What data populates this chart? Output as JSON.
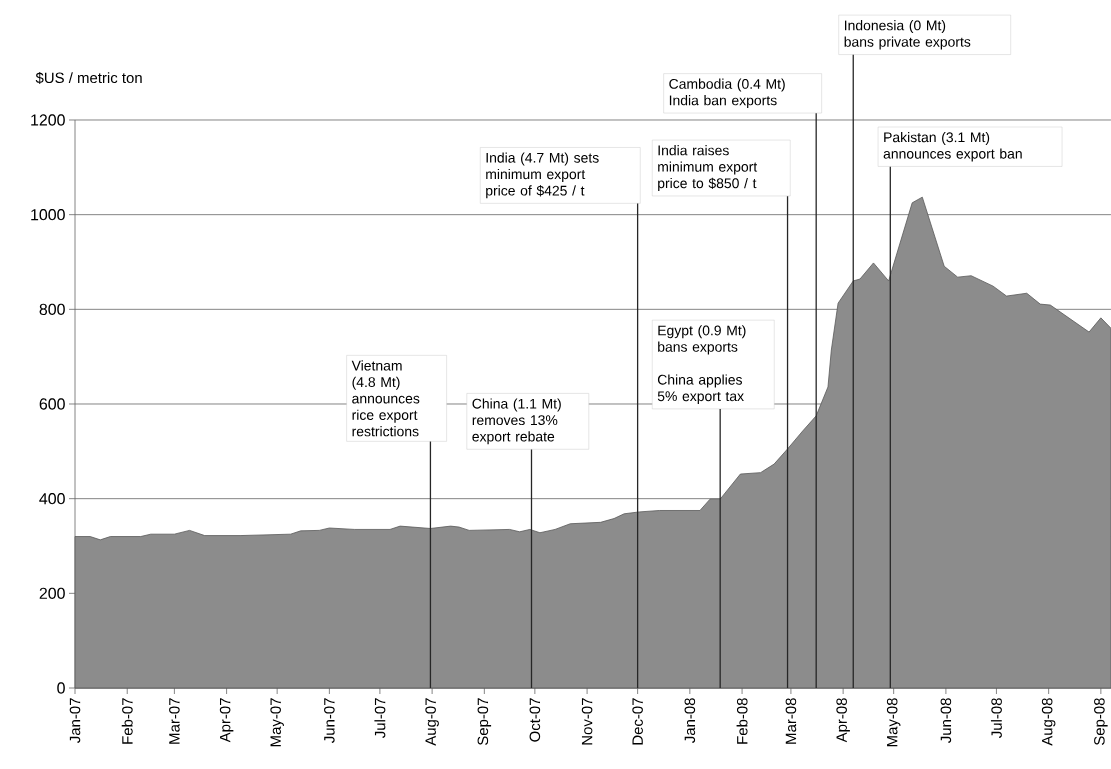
{
  "chart_data": {
    "type": "area",
    "ylabel": "$US / metric ton",
    "color": "#8c8c8c",
    "grid": "y",
    "x": [
      "2007-01-01",
      "2007-01-10",
      "2007-01-16",
      "2007-01-22",
      "2007-02-09",
      "2007-02-15",
      "2007-03-01",
      "2007-03-10",
      "2007-03-19",
      "2007-04-09",
      "2007-05-09",
      "2007-05-15",
      "2007-05-26",
      "2007-06-01",
      "2007-06-16",
      "2007-07-07",
      "2007-07-13",
      "2007-07-31",
      "2007-08-12",
      "2007-08-17",
      "2007-08-23",
      "2007-09-16",
      "2007-09-22",
      "2007-09-28",
      "2007-10-04",
      "2007-10-13",
      "2007-10-22",
      "2007-11-09",
      "2007-11-17",
      "2007-11-23",
      "2007-12-02",
      "2007-12-14",
      "2008-01-07",
      "2008-01-13",
      "2008-01-19",
      "2008-01-31",
      "2008-02-12",
      "2008-02-20",
      "2008-02-28",
      "2008-03-08",
      "2008-03-16",
      "2008-03-23",
      "2008-03-25",
      "2008-03-29",
      "2008-04-07",
      "2008-04-11",
      "2008-04-19",
      "2008-04-28",
      "2008-05-12",
      "2008-05-18",
      "2008-05-31",
      "2008-06-08",
      "2008-06-16",
      "2008-06-29",
      "2008-07-07",
      "2008-07-19",
      "2008-07-27",
      "2008-08-02",
      "2008-08-25",
      "2008-09-01",
      "2008-09-07"
    ],
    "values": [
      320,
      320,
      313,
      320,
      320,
      325,
      325,
      333,
      322,
      322,
      325,
      332,
      333,
      338,
      335,
      335,
      342,
      337,
      342,
      340,
      333,
      335,
      330,
      335,
      328,
      335,
      347,
      350,
      358,
      368,
      372,
      375,
      375,
      399,
      399,
      452,
      455,
      473,
      505,
      543,
      575,
      636,
      714,
      813,
      860,
      864,
      898,
      860,
      1025,
      1037,
      891,
      868,
      871,
      849,
      828,
      834,
      811,
      809,
      752,
      782,
      760
    ],
    "xlim": [
      "2007-01-01",
      "2008-09-07"
    ],
    "ylim": [
      0,
      1200
    ],
    "yticks": [
      0,
      200,
      400,
      600,
      800,
      1000,
      1200
    ],
    "xticks": [
      {
        "value": "2007-01-01",
        "label": "Jan-07"
      },
      {
        "value": "2007-02-01",
        "label": "Feb-07"
      },
      {
        "value": "2007-03-01",
        "label": "Mar-07"
      },
      {
        "value": "2007-04-01",
        "label": "Apr-07"
      },
      {
        "value": "2007-05-01",
        "label": "May-07"
      },
      {
        "value": "2007-06-01",
        "label": "Jun-07"
      },
      {
        "value": "2007-07-01",
        "label": "Jul-07"
      },
      {
        "value": "2007-08-01",
        "label": "Aug-07"
      },
      {
        "value": "2007-09-01",
        "label": "Sep-07"
      },
      {
        "value": "2007-10-01",
        "label": "Oct-07"
      },
      {
        "value": "2007-11-01",
        "label": "Nov-07"
      },
      {
        "value": "2007-12-01",
        "label": "Dec-07"
      },
      {
        "value": "2008-01-01",
        "label": "Jan-08"
      },
      {
        "value": "2008-02-01",
        "label": "Feb-08"
      },
      {
        "value": "2008-03-01",
        "label": "Mar-08"
      },
      {
        "value": "2008-04-01",
        "label": "Apr-08"
      },
      {
        "value": "2008-05-01",
        "label": "May-08"
      },
      {
        "value": "2008-06-01",
        "label": "Jun-08"
      },
      {
        "value": "2008-07-01",
        "label": "Jul-08"
      },
      {
        "value": "2008-08-01",
        "label": "Aug-08"
      },
      {
        "value": "2008-09-01",
        "label": "Sep-08"
      }
    ],
    "ref_lines": [
      {
        "axis": "x",
        "value": "2007-07-31",
        "label": "Vietnam\n(4.8 Mt)\nannounces\nrice export\nrestrictions"
      },
      {
        "axis": "x",
        "value": "2007-09-29",
        "label": "China (1.1 Mt)\nremoves 13%\nexport rebate"
      },
      {
        "axis": "x",
        "value": "2007-12-01",
        "label": "India (4.7 Mt) sets\nminimum export\nprice of $425 / t"
      },
      {
        "axis": "x",
        "value": "2008-01-19",
        "label": "Egypt (0.9 Mt)\nbans exports\n \nChina applies\n5% export tax"
      },
      {
        "axis": "x",
        "value": "2008-02-28",
        "label": "India raises\nminimum export\nprice to $850 / t"
      },
      {
        "axis": "x",
        "value": "2008-03-16",
        "label": "Cambodia (0.4 Mt)\nIndia ban exports"
      },
      {
        "axis": "x",
        "value": "2008-04-07",
        "label": "Indonesia (0 Mt)\nbans private exports"
      },
      {
        "axis": "x",
        "value": "2008-04-29",
        "label": "Pakistan (3.1 Mt)\nannounces export ban"
      }
    ]
  }
}
